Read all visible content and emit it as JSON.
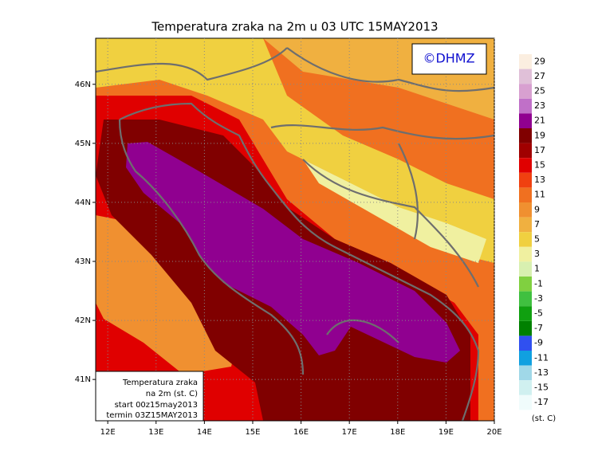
{
  "title": "Temperatura zraka na 2m u 03 UTC 15MAY2013",
  "copyright": "©DHMZ",
  "map": {
    "xlim": [
      11.75,
      20
    ],
    "ylim": [
      40.3,
      46.78
    ],
    "xticks": [
      {
        "value": 12,
        "label": "12E"
      },
      {
        "value": 13,
        "label": "13E"
      },
      {
        "value": 14,
        "label": "14E"
      },
      {
        "value": 15,
        "label": "15E"
      },
      {
        "value": 16,
        "label": "16E"
      },
      {
        "value": 17,
        "label": "17E"
      },
      {
        "value": 18,
        "label": "18E"
      },
      {
        "value": 19,
        "label": "19E"
      },
      {
        "value": 20,
        "label": "20E"
      }
    ],
    "yticks": [
      {
        "value": 41,
        "label": "41N"
      },
      {
        "value": 42,
        "label": "42N"
      },
      {
        "value": 43,
        "label": "43N"
      },
      {
        "value": 44,
        "label": "44N"
      },
      {
        "value": 45,
        "label": "45N"
      },
      {
        "value": 46,
        "label": "46N"
      }
    ],
    "grid": true
  },
  "colorbar": {
    "levels": [
      29,
      27,
      25,
      23,
      21,
      19,
      17,
      15,
      13,
      11,
      9,
      7,
      5,
      3,
      1,
      -1,
      -3,
      -5,
      -7,
      -9,
      -11,
      -13,
      -15,
      -17
    ],
    "colors": [
      "#fbeee0",
      "#e0c0d8",
      "#d8a0d0",
      "#c070c8",
      "#900090",
      "#800000",
      "#a00000",
      "#e00000",
      "#f04010",
      "#f07020",
      "#f09030",
      "#f0b040",
      "#f0d040",
      "#f0f0a0",
      "#d8f0b0",
      "#80d040",
      "#40c040",
      "#10a010",
      "#008000",
      "#3050f0",
      "#10a0e0",
      "#a0d8e8",
      "#d0f0f0",
      "#f0fcfc"
    ],
    "unit": "(st. C)"
  },
  "info": [
    "Temperatura zraka",
    "na 2m (st. C)",
    "start 00z15may2013",
    "termin 03Z15MAY2013"
  ]
}
